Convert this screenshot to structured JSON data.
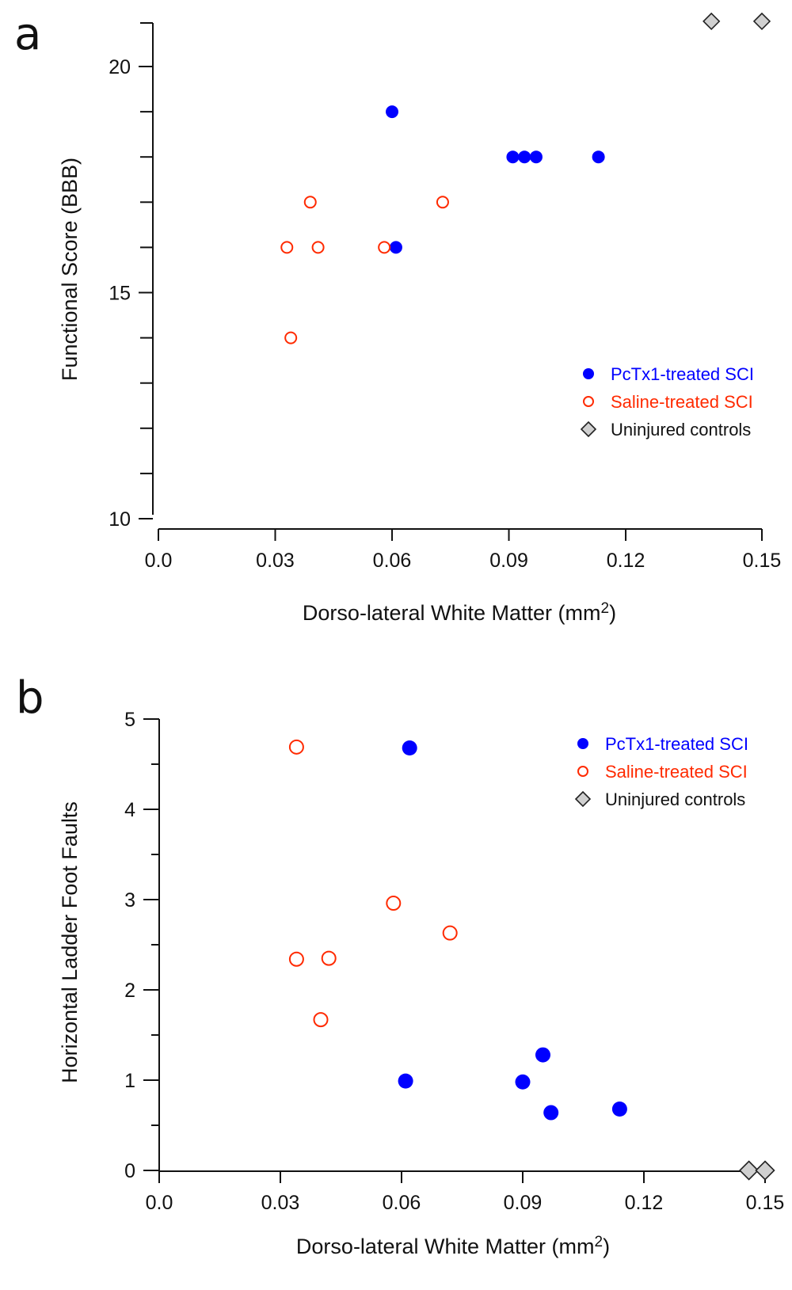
{
  "chart_data": [
    {
      "type": "scatter",
      "panel_label": "a",
      "title": "",
      "xlabel": "Dorso-lateral White Matter (mm",
      "xlabel_sup": "2",
      "xlabel_close": ")",
      "ylabel": "Functional Score (BBB)",
      "xlim": [
        0.0,
        0.15
      ],
      "ylim": [
        10,
        21
      ],
      "xticks": [
        "0.0",
        "0.03",
        "0.06",
        "0.09",
        "0.12",
        "0.15"
      ],
      "xtick_values": [
        0.0,
        0.03,
        0.06,
        0.09,
        0.12,
        0.15
      ],
      "yticks_major": [
        10,
        15,
        20
      ],
      "yticks_minor": [
        11,
        12,
        13,
        14,
        16,
        17,
        18,
        19,
        21
      ],
      "grid": false,
      "legend_position": "lower-right",
      "series": [
        {
          "name": "PcTx1-treated SCI",
          "marker": "filled-circle",
          "color": "#0000ff",
          "points": [
            [
              0.06,
              19
            ],
            [
              0.091,
              18
            ],
            [
              0.094,
              18
            ],
            [
              0.097,
              18
            ],
            [
              0.113,
              18
            ],
            [
              0.061,
              16
            ]
          ]
        },
        {
          "name": "Saline-treated SCI",
          "marker": "open-circle",
          "color": "#ff2a00",
          "points": [
            [
              0.033,
              16
            ],
            [
              0.039,
              17
            ],
            [
              0.041,
              16
            ],
            [
              0.058,
              16
            ],
            [
              0.073,
              17
            ],
            [
              0.034,
              14
            ]
          ]
        },
        {
          "name": "Uninjured controls",
          "marker": "diamond",
          "color": "#d0d0d0",
          "points": [
            [
              0.142,
              21
            ],
            [
              0.15,
              21
            ]
          ]
        }
      ]
    },
    {
      "type": "scatter",
      "panel_label": "b",
      "title": "",
      "xlabel": "Dorso-lateral White Matter (mm",
      "xlabel_sup": "2",
      "xlabel_close": ")",
      "ylabel": "Horizontal Ladder Foot Faults",
      "xlim": [
        0.0,
        0.15
      ],
      "ylim": [
        0,
        5
      ],
      "xticks": [
        "0.0",
        "0.03",
        "0.06",
        "0.09",
        "0.12",
        "0.15"
      ],
      "xtick_values": [
        0.0,
        0.03,
        0.06,
        0.09,
        0.12,
        0.15
      ],
      "yticks_major": [
        0,
        1,
        2,
        3,
        4,
        5
      ],
      "yticks_minor": [
        0.5,
        1.5,
        2.5,
        3.5,
        4.5
      ],
      "grid": false,
      "legend_position": "top-right",
      "series": [
        {
          "name": "PcTx1-treated SCI",
          "marker": "filled-circle",
          "color": "#0000ff",
          "points": [
            [
              0.062,
              4.68
            ],
            [
              0.061,
              0.99
            ],
            [
              0.09,
              0.98
            ],
            [
              0.095,
              1.28
            ],
            [
              0.097,
              0.64
            ],
            [
              0.114,
              0.68
            ]
          ]
        },
        {
          "name": "Saline-treated SCI",
          "marker": "open-circle",
          "color": "#ff2a00",
          "points": [
            [
              0.034,
              4.69
            ],
            [
              0.058,
              2.96
            ],
            [
              0.072,
              2.63
            ],
            [
              0.034,
              2.34
            ],
            [
              0.042,
              2.35
            ],
            [
              0.04,
              1.67
            ]
          ]
        },
        {
          "name": "Uninjured controls",
          "marker": "diamond",
          "color": "#d0d0d0",
          "points": [
            [
              0.146,
              0
            ],
            [
              0.15,
              0
            ]
          ]
        }
      ]
    }
  ]
}
